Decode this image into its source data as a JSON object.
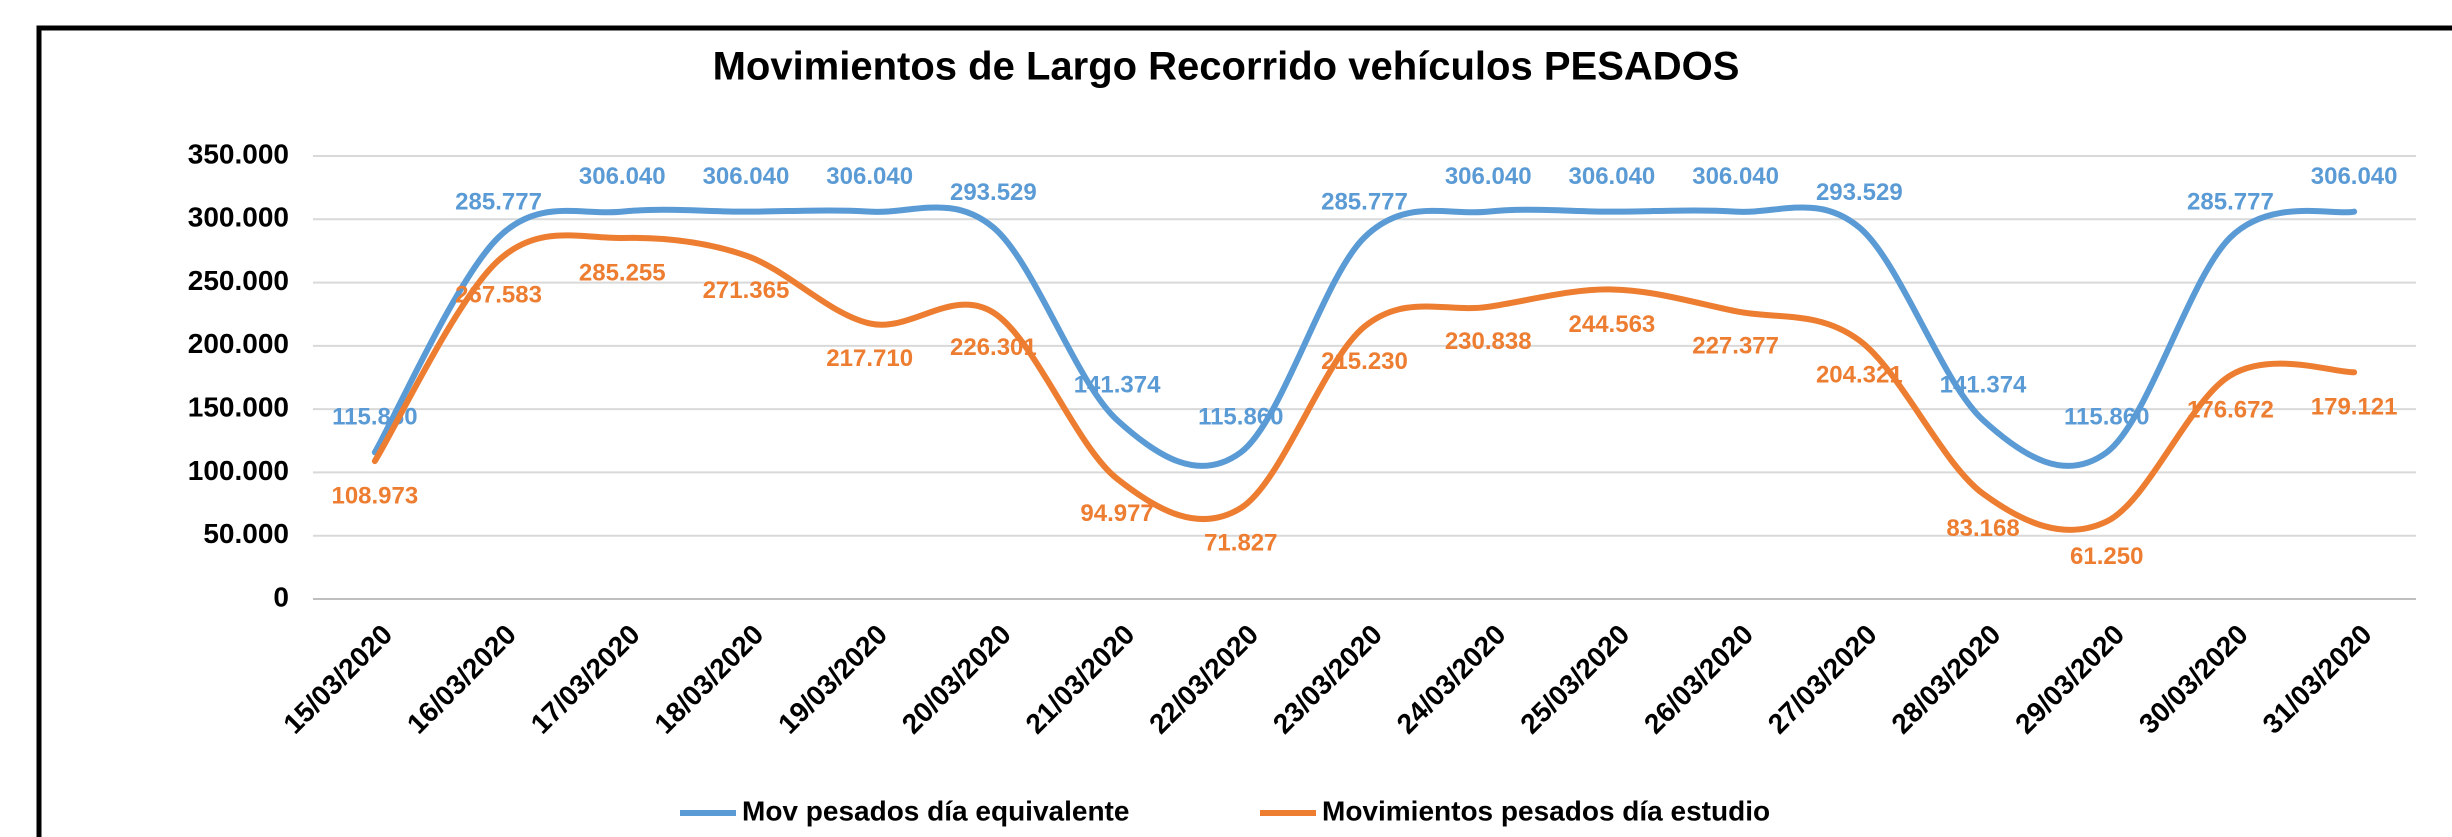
{
  "chart_data": {
    "type": "line",
    "title": "Movimientos de Largo Recorrido vehículos PESADOS",
    "categories": [
      "15/03/2020",
      "16/03/2020",
      "17/03/2020",
      "18/03/2020",
      "19/03/2020",
      "20/03/2020",
      "21/03/2020",
      "22/03/2020",
      "23/03/2020",
      "24/03/2020",
      "25/03/2020",
      "26/03/2020",
      "27/03/2020",
      "28/03/2020",
      "29/03/2020",
      "30/03/2020",
      "31/03/2020"
    ],
    "series": [
      {
        "name": "Mov pesados día equivalente",
        "color": "#5b9bd5",
        "values": [
          115860,
          285777,
          306040,
          306040,
          306040,
          293529,
          141374,
          115860,
          285777,
          306040,
          306040,
          306040,
          293529,
          141374,
          115860,
          285777,
          306040
        ],
        "value_labels": [
          "115.860",
          "285.777",
          "306.040",
          "306.040",
          "306.040",
          "293.529",
          "141.374",
          "115.860",
          "285.777",
          "306.040",
          "306.040",
          "306.040",
          "293.529",
          "141.374",
          "115.860",
          "285.777",
          "306.040"
        ]
      },
      {
        "name": "Movimientos pesados día estudio",
        "color": "#ed7d31",
        "values": [
          108973,
          267583,
          285255,
          271365,
          217710,
          226301,
          94977,
          71827,
          215230,
          230838,
          244563,
          227377,
          204321,
          83168,
          61250,
          176672,
          179121
        ],
        "value_labels": [
          "108.973",
          "267.583",
          "285.255",
          "271.365",
          "217.710",
          "226.301",
          "94.977",
          "71.827",
          "215.230",
          "230.838",
          "244.563",
          "227.377",
          "204.321",
          "83.168",
          "61.250",
          "176.672",
          "179.121"
        ]
      }
    ],
    "ylim": [
      0,
      350000
    ],
    "yticks": [
      0,
      {
        "value": 50000,
        "label": "50.000"
      },
      {
        "value": 100000,
        "label": "100.000"
      },
      {
        "value": 150000,
        "label": "150.000"
      },
      {
        "value": 200000,
        "label": "200.000"
      },
      {
        "value": 250000,
        "label": "250.000"
      },
      {
        "value": 300000,
        "label": "300.000"
      },
      {
        "value": 350000,
        "label": "350.000"
      }
    ],
    "grid": true,
    "legend": "bottom"
  }
}
